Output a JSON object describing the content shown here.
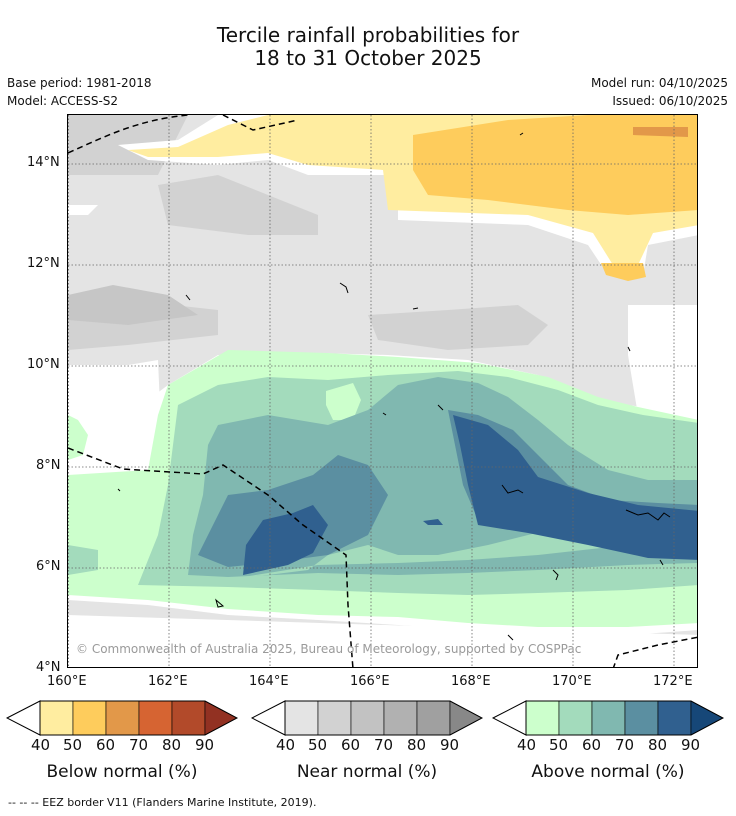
{
  "title": {
    "line1": "Tercile rainfall probabilities for",
    "line2": "18 to 31 October 2025"
  },
  "meta": {
    "base_period": "Base period: 1981-2018",
    "model": "Model: ACCESS-S2",
    "model_run": "Model run: 04/10/2025",
    "issued": "Issued: 06/10/2025"
  },
  "map": {
    "lat_labels": [
      "14°N",
      "12°N",
      "10°N",
      "8°N",
      "6°N",
      "4°N"
    ],
    "lon_labels": [
      "160°E",
      "162°E",
      "164°E",
      "166°E",
      "168°E",
      "170°E",
      "172°E"
    ],
    "copyright": "© Commonwealth of Australia 2025, Bureau of Meteorology, supported by COSPPac"
  },
  "legends": [
    {
      "title": "Below normal (%)",
      "colors": [
        "#ffeda0",
        "#fecc5c",
        "#e29849",
        "#d66432",
        "#b24a2a",
        "#923122"
      ],
      "ticks": [
        "40",
        "50",
        "60",
        "70",
        "80",
        "90"
      ]
    },
    {
      "title": "Near normal (%)",
      "colors": [
        "#e4e4e4",
        "#d2d2d2",
        "#c2c2c2",
        "#b1b1b1",
        "#a0a0a0",
        "#888888"
      ],
      "ticks": [
        "40",
        "50",
        "60",
        "70",
        "80",
        "90"
      ]
    },
    {
      "title": "Above normal (%)",
      "colors": [
        "#ccffcc",
        "#a3dbbc",
        "#80b8b0",
        "#5b8fa1",
        "#30608f",
        "#164778"
      ],
      "ticks": [
        "40",
        "50",
        "60",
        "70",
        "80",
        "90"
      ]
    }
  ],
  "footer": "--  --  -- EEZ border V11 (Flanders Marine Institute, 2019)."
}
